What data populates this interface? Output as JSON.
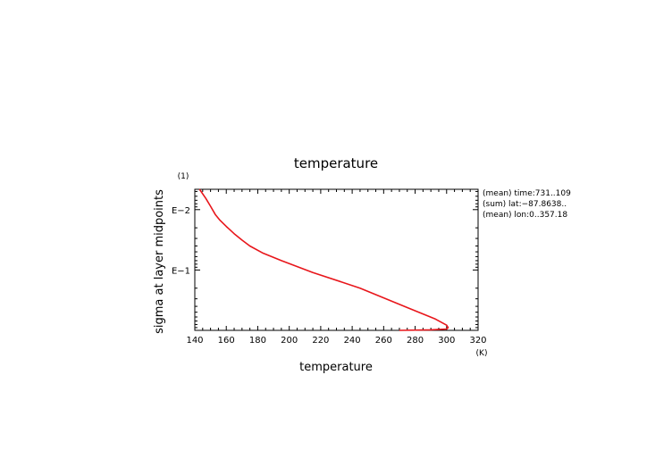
{
  "chart_data": {
    "type": "line",
    "title": "temperature",
    "xlabel": "temperature",
    "ylabel": "sigma at layer midpoints",
    "x_unit": "(K)",
    "y_unit": "(1)",
    "xlim": [
      140,
      320
    ],
    "x_ticks": [
      140,
      160,
      180,
      200,
      220,
      240,
      260,
      280,
      300,
      320
    ],
    "ylim": [
      1,
      0.0046
    ],
    "y_scale": "log",
    "y_tick_labels": [
      {
        "value": 0.01,
        "label": "E−2"
      },
      {
        "value": 0.1,
        "label": "E−1"
      }
    ],
    "grid": false,
    "annotations": [
      "(mean) time:731..109",
      "(sum) lat:−87.8638..",
      "(mean) lon:0..357.18"
    ],
    "series": [
      {
        "color": "#e8161b",
        "x": [
          143,
          147,
          150,
          153,
          156,
          160,
          165,
          170,
          175,
          183,
          195,
          215,
          245,
          275,
          293,
          300,
          301,
          300,
          290,
          270
        ],
        "y": [
          0.0046,
          0.0065,
          0.0088,
          0.012,
          0.015,
          0.019,
          0.025,
          0.032,
          0.04,
          0.052,
          0.07,
          0.11,
          0.2,
          0.42,
          0.65,
          0.82,
          0.9,
          0.95,
          0.98,
          1.0
        ]
      }
    ]
  }
}
